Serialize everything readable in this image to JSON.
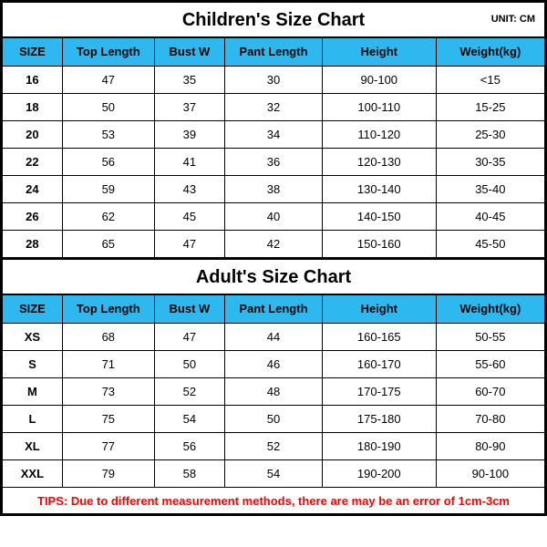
{
  "colors": {
    "header_bg": "#2eb8f0",
    "tips_color": "#ff0000",
    "border": "#000000",
    "background": "#ffffff"
  },
  "fonts": {
    "title_size_pt": 15,
    "header_size_pt": 10,
    "cell_size_pt": 10,
    "tips_size_pt": 10,
    "title_weight": "bold",
    "header_weight": "bold"
  },
  "tables": [
    {
      "title": "Children's Size Chart",
      "unit": "UNIT: CM",
      "columns": [
        "SIZE",
        "Top Length",
        "Bust W",
        "Pant Length",
        "Height",
        "Weight(kg)"
      ],
      "rows": [
        [
          "16",
          "47",
          "35",
          "30",
          "90-100",
          "<15"
        ],
        [
          "18",
          "50",
          "37",
          "32",
          "100-110",
          "15-25"
        ],
        [
          "20",
          "53",
          "39",
          "34",
          "110-120",
          "25-30"
        ],
        [
          "22",
          "56",
          "41",
          "36",
          "120-130",
          "30-35"
        ],
        [
          "24",
          "59",
          "43",
          "38",
          "130-140",
          "35-40"
        ],
        [
          "26",
          "62",
          "45",
          "40",
          "140-150",
          "40-45"
        ],
        [
          "28",
          "65",
          "47",
          "42",
          "150-160",
          "45-50"
        ]
      ]
    },
    {
      "title": "Adult's Size Chart",
      "unit": "",
      "columns": [
        "SIZE",
        "Top Length",
        "Bust W",
        "Pant Length",
        "Height",
        "Weight(kg)"
      ],
      "rows": [
        [
          "XS",
          "68",
          "47",
          "44",
          "160-165",
          "50-55"
        ],
        [
          "S",
          "71",
          "50",
          "46",
          "160-170",
          "55-60"
        ],
        [
          "M",
          "73",
          "52",
          "48",
          "170-175",
          "60-70"
        ],
        [
          "L",
          "75",
          "54",
          "50",
          "175-180",
          "70-80"
        ],
        [
          "XL",
          "77",
          "56",
          "52",
          "180-190",
          "80-90"
        ],
        [
          "XXL",
          "79",
          "58",
          "54",
          "190-200",
          "90-100"
        ]
      ]
    }
  ],
  "tips": "TIPS: Due to different measurement methods, there are may be an error of 1cm-3cm"
}
